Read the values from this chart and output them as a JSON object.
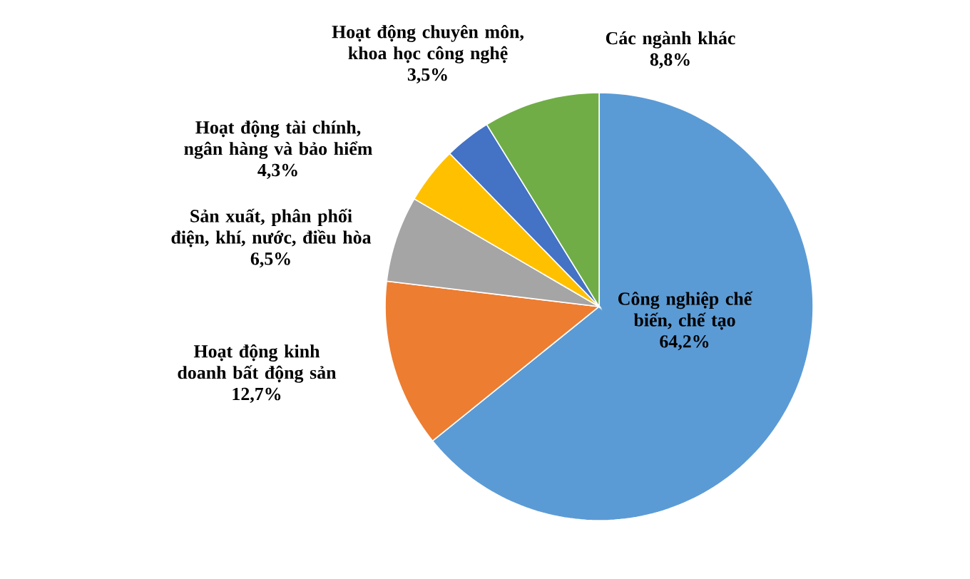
{
  "chart_data": {
    "type": "pie",
    "categories": [
      "Công nghiệp chế biến, chế tạo",
      "Hoạt động kinh doanh bất động sản",
      "Sản xuất, phân phối điện, khí, nước, điều hòa",
      "Hoạt động tài chính, ngân hàng và bảo hiểm",
      "Hoạt động chuyên môn, khoa học công nghệ",
      "Các ngành khác"
    ],
    "values": [
      64.2,
      12.7,
      6.5,
      4.3,
      3.5,
      8.8
    ],
    "value_labels": [
      "64,2%",
      "12,7%",
      "6,5%",
      "4,3%",
      "3,5%",
      "8,8%"
    ],
    "colors": [
      "#5b9bd5",
      "#ed7d31",
      "#a5a5a5",
      "#ffc000",
      "#4472c4",
      "#70ad47"
    ]
  }
}
